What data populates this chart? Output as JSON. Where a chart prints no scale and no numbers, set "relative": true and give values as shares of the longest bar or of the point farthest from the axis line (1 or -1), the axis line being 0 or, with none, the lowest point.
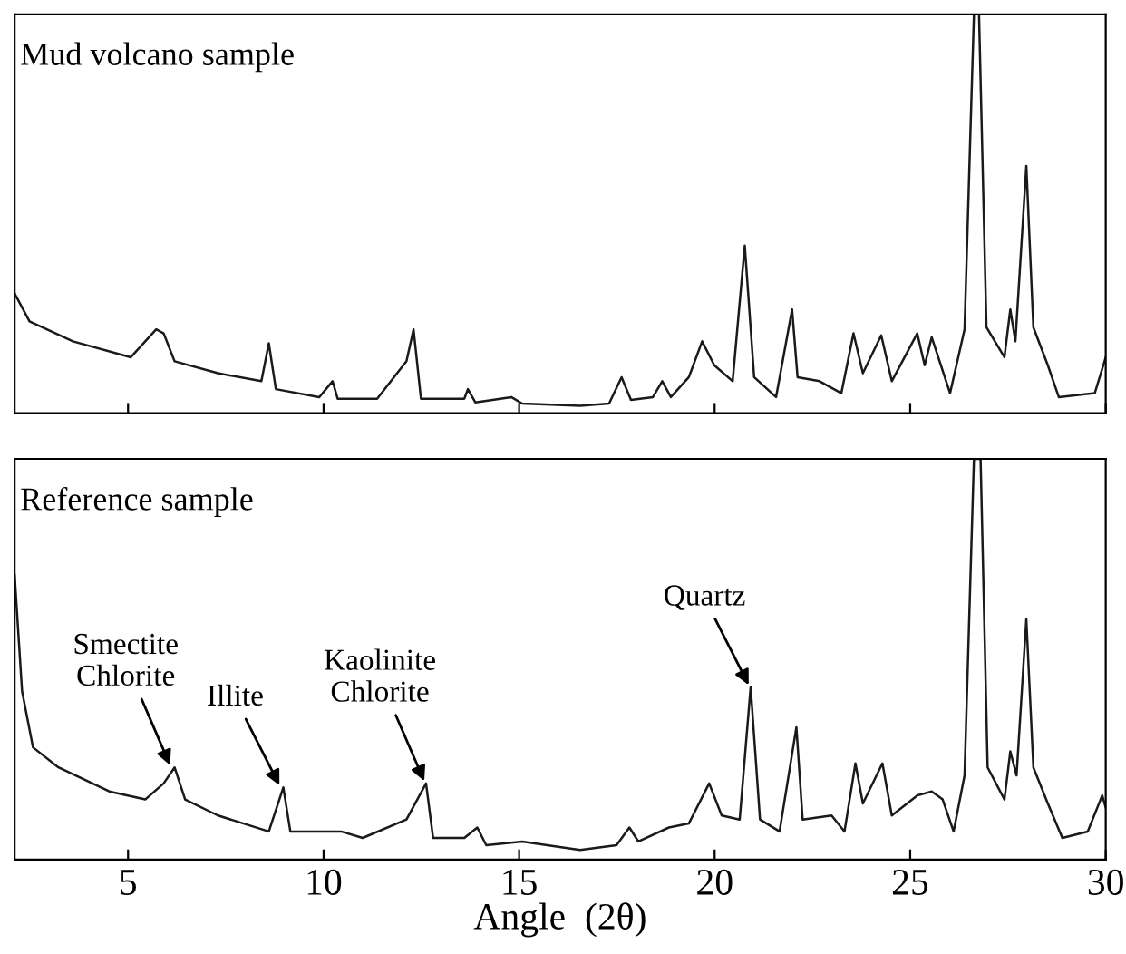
{
  "chart_data": [
    {
      "type": "line",
      "title": "Mud volcano sample",
      "relative": true,
      "xlim": [
        2.1,
        30
      ],
      "xticks": [
        5,
        10,
        15,
        20,
        25,
        30
      ],
      "tick_labels": false,
      "grid": false,
      "legend": false,
      "series": [
        {
          "color": "#1a1a1a",
          "x": [
            2.1,
            2.48,
            3.59,
            5.07,
            5.72,
            5.91,
            6.19,
            7.3,
            8.41,
            8.6,
            8.78,
            9.89,
            10.23,
            10.36,
            11.37,
            12.12,
            12.3,
            12.49,
            13.6,
            13.69,
            13.88,
            14.8,
            15.08,
            16.56,
            17.3,
            17.62,
            17.86,
            18.42,
            18.66,
            18.88,
            19.34,
            19.68,
            19.99,
            20.46,
            20.77,
            21.01,
            21.57,
            21.98,
            22.12,
            22.68,
            23.24,
            23.55,
            23.79,
            24.26,
            24.53,
            25.18,
            25.37,
            25.55,
            26.02,
            26.39,
            26.63,
            26.76,
            26.95,
            27.41,
            27.56,
            27.69,
            27.97,
            28.15,
            28.52,
            28.8,
            29.72,
            30.0
          ],
          "values": [
            0.3,
            0.23,
            0.18,
            0.14,
            0.21,
            0.2,
            0.13,
            0.1,
            0.08,
            0.175,
            0.06,
            0.04,
            0.08,
            0.036,
            0.036,
            0.13,
            0.21,
            0.036,
            0.036,
            0.06,
            0.027,
            0.04,
            0.024,
            0.018,
            0.024,
            0.09,
            0.033,
            0.04,
            0.08,
            0.04,
            0.09,
            0.18,
            0.12,
            0.08,
            0.42,
            0.09,
            0.04,
            0.26,
            0.09,
            0.08,
            0.05,
            0.2,
            0.1,
            0.195,
            0.08,
            0.2,
            0.12,
            0.19,
            0.05,
            0.21,
            1.0,
            1.0,
            0.215,
            0.14,
            0.26,
            0.18,
            0.62,
            0.215,
            0.12,
            0.04,
            0.05,
            0.14
          ]
        }
      ]
    },
    {
      "type": "line",
      "title": "Reference sample",
      "xlabel": "Angle  (2θ)",
      "relative": true,
      "xlim": [
        2.1,
        30
      ],
      "xticks": [
        5,
        10,
        15,
        20,
        25,
        30
      ],
      "tick_labels": "x",
      "grid": false,
      "legend": false,
      "annotations": [
        {
          "text": "Smectite\nChlorite",
          "x": 6.1,
          "y": 0.23
        },
        {
          "text": "Illite",
          "x": 8.9,
          "y": 0.18
        },
        {
          "text": "Kaolinite\nChlorite",
          "x": 12.6,
          "y": 0.19
        },
        {
          "text": "Quartz",
          "x": 20.9,
          "y": 0.43
        }
      ],
      "series": [
        {
          "color": "#1a1a1a",
          "x": [
            2.1,
            2.29,
            2.57,
            3.22,
            4.52,
            5.44,
            5.91,
            6.19,
            6.46,
            7.3,
            8.6,
            8.97,
            9.15,
            10.45,
            11.0,
            12.12,
            12.62,
            12.8,
            13.6,
            13.93,
            14.16,
            15.08,
            16.56,
            17.49,
            17.82,
            18.05,
            18.83,
            19.34,
            19.86,
            20.18,
            20.64,
            20.92,
            21.16,
            21.66,
            22.09,
            22.25,
            22.99,
            23.32,
            23.6,
            23.79,
            24.29,
            24.53,
            25.18,
            25.55,
            25.83,
            26.11,
            26.39,
            26.63,
            26.8,
            26.98,
            27.41,
            27.56,
            27.72,
            27.97,
            28.15,
            28.52,
            28.89,
            29.54,
            29.91,
            30.0
          ],
          "values": [
            0.71,
            0.42,
            0.28,
            0.23,
            0.17,
            0.15,
            0.19,
            0.23,
            0.15,
            0.11,
            0.07,
            0.18,
            0.07,
            0.07,
            0.054,
            0.1,
            0.19,
            0.054,
            0.054,
            0.08,
            0.036,
            0.045,
            0.024,
            0.036,
            0.08,
            0.045,
            0.08,
            0.09,
            0.19,
            0.11,
            0.1,
            0.43,
            0.1,
            0.07,
            0.33,
            0.1,
            0.11,
            0.07,
            0.24,
            0.14,
            0.24,
            0.11,
            0.16,
            0.17,
            0.15,
            0.07,
            0.21,
            1.0,
            1.0,
            0.23,
            0.15,
            0.27,
            0.21,
            0.6,
            0.23,
            0.14,
            0.054,
            0.07,
            0.16,
            0.13
          ]
        }
      ]
    }
  ]
}
